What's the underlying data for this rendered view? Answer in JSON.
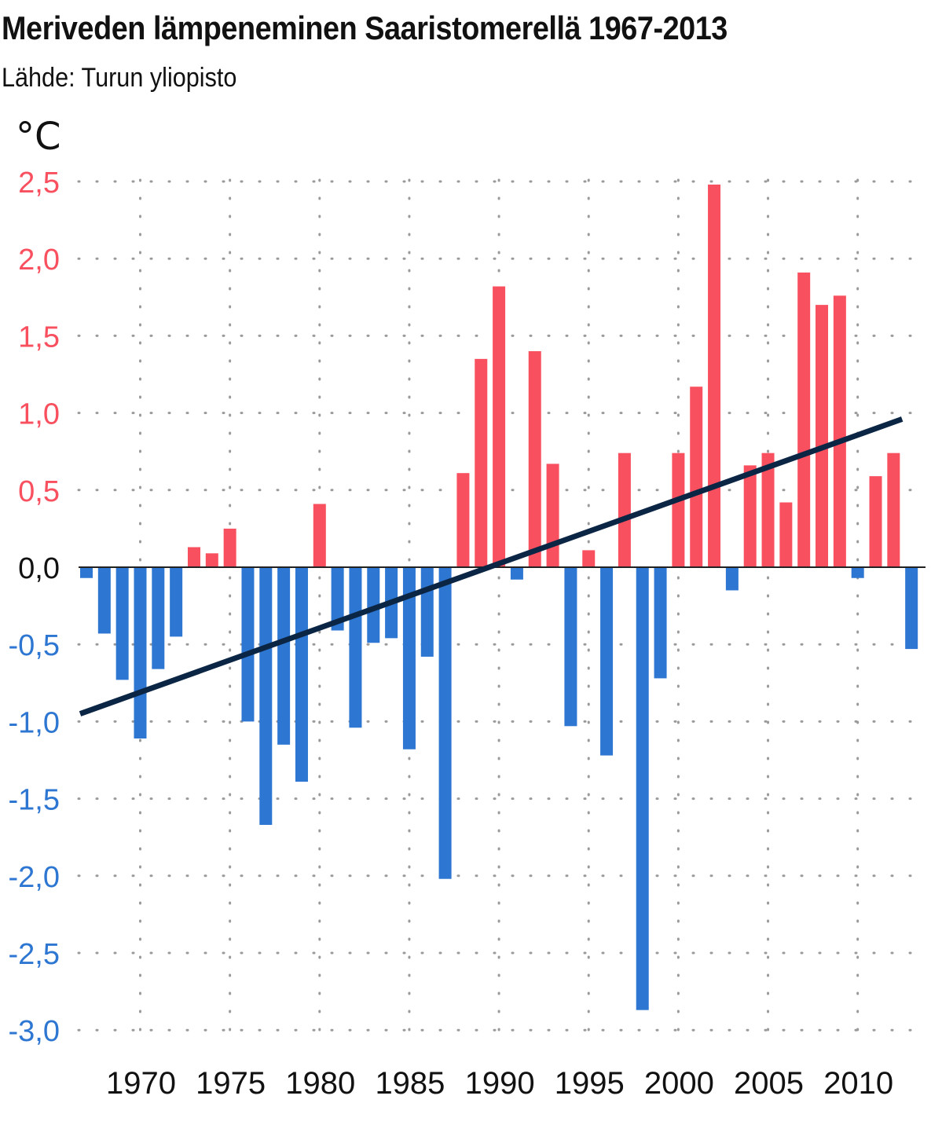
{
  "title": "Meriveden lämpeneminen Saaristomerellä 1967-2013",
  "source": "Lähde: Turun yliopisto",
  "unit": "°C",
  "colors": {
    "positive": "#f9505f",
    "negative": "#2d76d1",
    "trend": "#0b2545",
    "grid": "#9a9a9a",
    "zero_line": "#222222",
    "zero_label": "#111111"
  },
  "chart_data": {
    "type": "bar",
    "title": "Meriveden lämpeneminen Saaristomerellä 1967-2013",
    "ylabel": "°C",
    "xlabel": "",
    "ylim": [
      -3.0,
      2.5
    ],
    "yticks": [
      {
        "value": 2.5,
        "label": "2,5"
      },
      {
        "value": 2.0,
        "label": "2,0"
      },
      {
        "value": 1.5,
        "label": "1,5"
      },
      {
        "value": 1.0,
        "label": "1,0"
      },
      {
        "value": 0.5,
        "label": "0,5"
      },
      {
        "value": 0.0,
        "label": "0,0"
      },
      {
        "value": -0.5,
        "label": "-0,5"
      },
      {
        "value": -1.0,
        "label": "-1,0"
      },
      {
        "value": -1.5,
        "label": "-1,5"
      },
      {
        "value": -2.0,
        "label": "-2,0"
      },
      {
        "value": -2.5,
        "label": "-2,5"
      },
      {
        "value": -3.0,
        "label": "-3,0"
      }
    ],
    "xticks": [
      1970,
      1975,
      1980,
      1985,
      1990,
      1995,
      2000,
      2005,
      2010
    ],
    "grid": true,
    "categories": [
      1967,
      1968,
      1969,
      1970,
      1971,
      1972,
      1973,
      1974,
      1975,
      1976,
      1977,
      1978,
      1979,
      1980,
      1981,
      1982,
      1983,
      1984,
      1985,
      1986,
      1987,
      1988,
      1989,
      1990,
      1991,
      1992,
      1993,
      1994,
      1995,
      1996,
      1997,
      1998,
      1999,
      2000,
      2001,
      2002,
      2003,
      2004,
      2005,
      2006,
      2007,
      2008,
      2009,
      2010,
      2011,
      2012,
      2013
    ],
    "values": [
      -0.07,
      -0.43,
      -0.73,
      -1.11,
      -0.66,
      -0.45,
      0.13,
      0.09,
      0.25,
      -1.0,
      -1.67,
      -1.15,
      -1.39,
      0.41,
      -0.41,
      -1.04,
      -0.49,
      -0.46,
      -1.18,
      -0.58,
      -2.02,
      0.61,
      1.35,
      1.82,
      -0.08,
      1.4,
      0.67,
      -1.03,
      0.11,
      -1.22,
      0.74,
      -2.87,
      -0.72,
      0.74,
      1.17,
      2.48,
      -0.15,
      0.66,
      0.74,
      0.42,
      1.91,
      1.7,
      1.76,
      -0.07,
      0.59,
      0.74,
      -0.53
    ],
    "trendline": {
      "x": [
        1967,
        2013
      ],
      "y": [
        -0.95,
        0.96
      ]
    }
  }
}
